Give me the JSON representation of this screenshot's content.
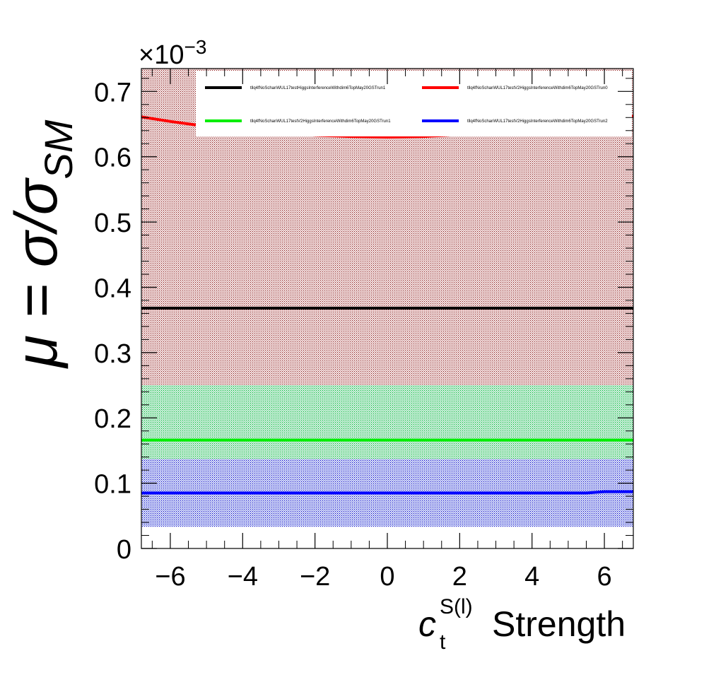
{
  "chart_data": {
    "type": "line",
    "title": "",
    "xlabel": "Strength",
    "xlabel_symbol": "c",
    "xlabel_sub": "t",
    "xlabel_sup": "S(l)",
    "ylabel": "μ = σ/σ",
    "ylabel_sub": "SM",
    "y_multiplier_base": "×10",
    "y_multiplier_exp": "−3",
    "xlim": [
      -6.8,
      6.8
    ],
    "ylim": [
      0,
      0.735
    ],
    "x_ticks": [
      -6,
      -4,
      -2,
      0,
      2,
      4,
      6
    ],
    "x_tick_labels": [
      "−6",
      "−4",
      "−2",
      "0",
      "2",
      "4",
      "6"
    ],
    "y_ticks": [
      0,
      0.1,
      0.2,
      0.3,
      0.4,
      0.5,
      0.6,
      0.7
    ],
    "y_tick_labels": [
      "0",
      "0.1",
      "0.2",
      "0.3",
      "0.4",
      "0.5",
      "0.6",
      "0.7"
    ],
    "legend_position": "top",
    "grid": false,
    "series": [
      {
        "name": "tllq4fNoSchanWUL17testHiggsInterferenceWithdim6TopMay20GSTrun1",
        "color": "#000000",
        "x": [
          -6.8,
          6.8
        ],
        "y": [
          0.368,
          0.368
        ],
        "band": [
          0.25,
          1.0
        ],
        "band_color": "#8b1a1a"
      },
      {
        "name": "tllq4fNoSchanWUL17testV2HiggsInterferenceWithdim6TopMay20GSTrun0",
        "color": "#ff0000",
        "x": [
          -6.8,
          -6,
          -5.2,
          -4,
          -3,
          -2,
          -1,
          0,
          1,
          2,
          3,
          4,
          5,
          6,
          6.8
        ],
        "y": [
          0.661,
          0.654,
          0.648,
          0.641,
          0.637,
          0.633,
          0.631,
          0.63,
          0.631,
          0.634,
          0.637,
          0.642,
          0.648,
          0.656,
          0.662
        ],
        "band": [
          0.25,
          1.0
        ],
        "band_color": "#c08a8a"
      },
      {
        "name": "tllq4fNoSchanWUL17testV2HiggsInterferenceWithdim6TopMay20GSTrun1",
        "color": "#00ee00",
        "x": [
          -6.8,
          6.8
        ],
        "y": [
          0.166,
          0.166
        ],
        "band": [
          0.137,
          0.25
        ],
        "band_color": "#00cc33"
      },
      {
        "name": "tllq4fNoSchanWUL17testV2HiggsInterferenceWithdim6TopMay20GSTrun2",
        "color": "#0000ff",
        "x": [
          -6.8,
          -4,
          -2,
          0,
          2,
          4,
          5.5,
          6,
          6.8
        ],
        "y": [
          0.085,
          0.085,
          0.085,
          0.085,
          0.085,
          0.085,
          0.085,
          0.087,
          0.087
        ],
        "band": [
          0.033,
          0.137
        ],
        "band_color": "#0000cc"
      }
    ]
  }
}
